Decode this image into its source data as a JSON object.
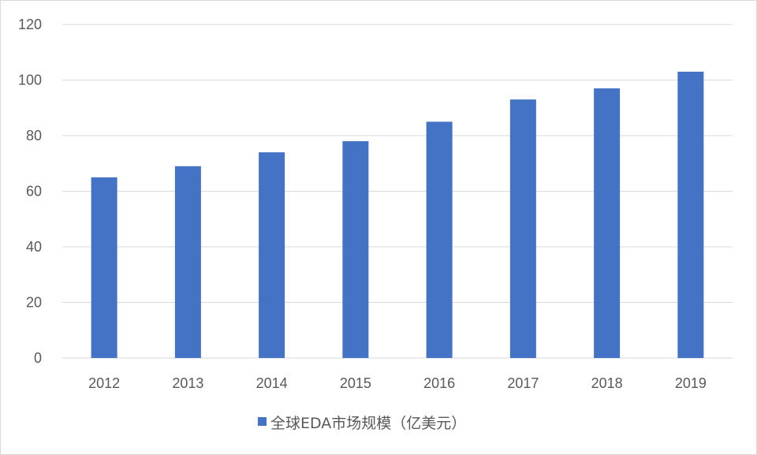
{
  "chart_data": {
    "type": "bar",
    "categories": [
      "2012",
      "2013",
      "2014",
      "2015",
      "2016",
      "2017",
      "2018",
      "2019"
    ],
    "series": [
      {
        "name": "全球EDA市场规模（亿美元）",
        "values": [
          65,
          69,
          74,
          78,
          85,
          93,
          97,
          103
        ],
        "color": "#4472c4"
      }
    ],
    "ylim": [
      0,
      120
    ],
    "yticks": [
      "0",
      "20",
      "40",
      "60",
      "80",
      "100",
      "120"
    ],
    "grid": true,
    "legend_position": "bottom",
    "title": "",
    "xlabel": "",
    "ylabel": ""
  },
  "colors": {
    "bar": "#4472c4",
    "grid": "#d9d9d9",
    "axis_text": "#595959"
  }
}
